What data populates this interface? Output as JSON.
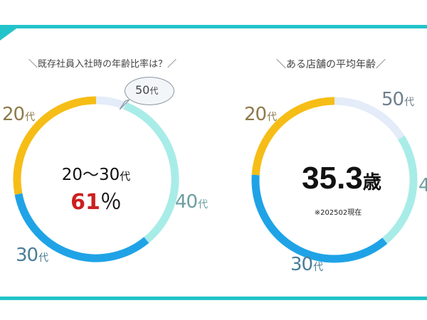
{
  "left_chart": {
    "heading": "＼既存社員入社時の年齢比率は？／",
    "center_line1_value": "20～30",
    "center_line1_suffix": "代",
    "center_pct_value": "61",
    "center_pct_sign": "％",
    "labels": {
      "age20": {
        "value": "20",
        "suffix": "代"
      },
      "age30": {
        "value": "30",
        "suffix": "代"
      },
      "age40": {
        "value": "40",
        "suffix": "代"
      },
      "age50": {
        "value": "50",
        "suffix": "代"
      }
    }
  },
  "right_chart": {
    "heading": "＼ある店舗の平均年齢／",
    "avg_value": "35.3",
    "avg_unit": "歳",
    "note": "※202502現在",
    "labels": {
      "age20": {
        "value": "20",
        "suffix": "代"
      },
      "age30": {
        "value": "30",
        "suffix": "代"
      },
      "age40": {
        "value": "4",
        "suffix": ""
      },
      "age50": {
        "value": "50",
        "suffix": "代"
      }
    }
  },
  "colors": {
    "accent_teal": "#22c4c9",
    "segment_20s": "#f6bd16",
    "segment_30s": "#1fa3e6",
    "segment_40s": "#a8ece8",
    "segment_50s": "#e3ecf8",
    "highlight_red": "#cc1f1f"
  },
  "chart_data": [
    {
      "type": "pie",
      "categories": [
        "20代",
        "30代",
        "40代",
        "50代"
      ],
      "values": [
        28,
        33,
        33,
        6
      ],
      "title": "＼既存社員入社時の年齢比率は？／",
      "annotation": "20～30代 61％"
    },
    {
      "type": "pie",
      "categories": [
        "20代",
        "30代",
        "40代",
        "50代"
      ],
      "values": [
        24,
        37,
        23,
        16
      ],
      "title": "＼ある店舗の平均年齢／",
      "annotation": "35.3歳"
    }
  ]
}
